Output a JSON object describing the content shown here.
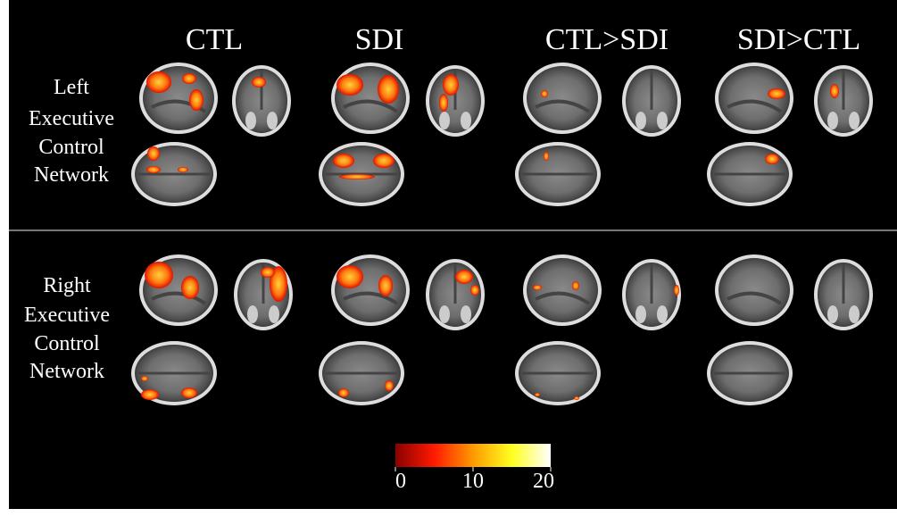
{
  "header": {
    "columns": [
      "CTL",
      "SDI",
      "CTL>SDI",
      "SDI>CTL"
    ]
  },
  "rows": [
    {
      "label_lines": [
        "Left",
        "Executive",
        "Control",
        "Network"
      ]
    },
    {
      "label_lines": [
        "Right",
        "Executive",
        "Control",
        "Network"
      ]
    }
  ],
  "colorbar": {
    "lim": [
      0,
      20
    ],
    "ticks": [
      0,
      10,
      20
    ]
  }
}
